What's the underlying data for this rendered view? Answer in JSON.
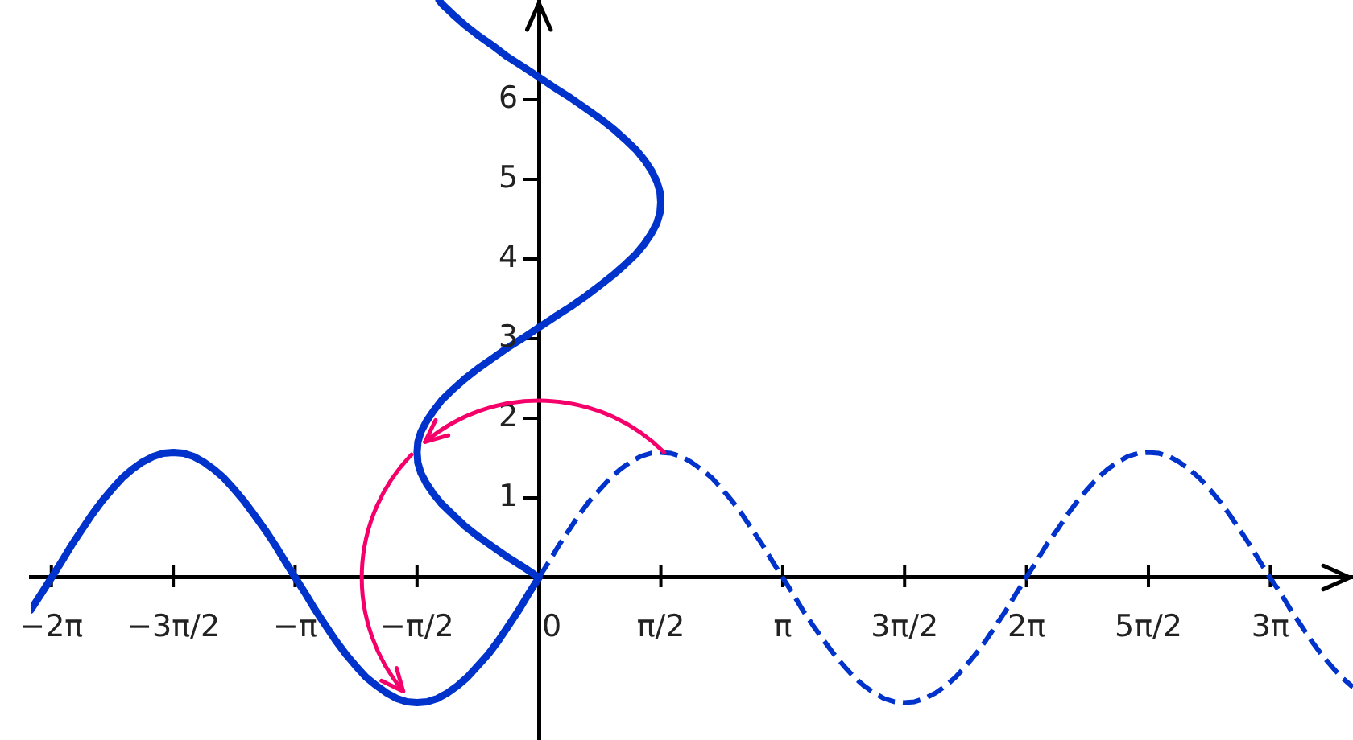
{
  "chart_data": {
    "type": "line",
    "xlim": [
      -6.55,
      10.49
    ],
    "ylim": [
      -2.04,
      7.25
    ],
    "xticks": [
      {
        "value": -6.283,
        "label": "−2π"
      },
      {
        "value": -4.712,
        "label": "−3π/2"
      },
      {
        "value": -3.142,
        "label": "−π"
      },
      {
        "value": -1.571,
        "label": "−π/2"
      },
      {
        "value": 0,
        "label": "0"
      },
      {
        "value": 1.571,
        "label": "π/2"
      },
      {
        "value": 3.142,
        "label": "π"
      },
      {
        "value": 4.712,
        "label": "3π/2"
      },
      {
        "value": 6.283,
        "label": "2π"
      },
      {
        "value": 7.854,
        "label": "5π/2"
      },
      {
        "value": 9.425,
        "label": "3π"
      }
    ],
    "yticks": [
      1,
      2,
      3,
      4,
      5,
      6
    ],
    "series": [
      {
        "color": "#0033cc",
        "line_style": "solid",
        "x": [
          -6.55,
          -6.41,
          -6.28,
          -6.15,
          -6.02,
          -5.89,
          -5.76,
          -5.63,
          -5.5,
          -5.37,
          -5.24,
          -5.11,
          -4.97,
          -4.84,
          -4.71,
          -4.58,
          -4.45,
          -4.32,
          -4.19,
          -4.06,
          -3.93,
          -3.8,
          -3.67,
          -3.53,
          -3.4,
          -3.27,
          -3.14,
          -3.01,
          -2.88,
          -2.75,
          -2.62,
          -2.49,
          -2.36,
          -2.23,
          -2.09,
          -1.96,
          -1.83,
          -1.7,
          -1.57,
          -1.44,
          -1.31,
          -1.18,
          -1.05,
          -0.92,
          -0.79,
          -0.65,
          -0.52,
          -0.39,
          -0.26,
          -0.13,
          0
        ],
        "values": [
          -0.41,
          -0.2,
          0,
          0.2,
          0.41,
          0.6,
          0.79,
          0.96,
          1.11,
          1.25,
          1.36,
          1.45,
          1.52,
          1.56,
          1.57,
          1.56,
          1.52,
          1.45,
          1.36,
          1.25,
          1.11,
          0.96,
          0.79,
          0.6,
          0.41,
          0.2,
          0,
          -0.2,
          -0.41,
          -0.6,
          -0.79,
          -0.96,
          -1.11,
          -1.25,
          -1.36,
          -1.45,
          -1.52,
          -1.56,
          -1.57,
          -1.56,
          -1.52,
          -1.45,
          -1.36,
          -1.25,
          -1.11,
          -0.96,
          -0.79,
          -0.6,
          -0.41,
          -0.2,
          0
        ]
      },
      {
        "color": "#0033cc",
        "line_style": "dashed",
        "x": [
          0,
          0.13,
          0.26,
          0.39,
          0.52,
          0.65,
          0.79,
          0.92,
          1.05,
          1.18,
          1.31,
          1.44,
          1.57,
          1.7,
          1.83,
          1.96,
          2.09,
          2.23,
          2.36,
          2.49,
          2.62,
          2.75,
          2.88,
          3.01,
          3.14,
          3.27,
          3.4,
          3.53,
          3.67,
          3.8,
          3.93,
          4.06,
          4.19,
          4.32,
          4.45,
          4.58,
          4.71,
          4.84,
          4.97,
          5.11,
          5.24,
          5.37,
          5.5,
          5.63,
          5.76,
          5.89,
          6.02,
          6.15,
          6.28,
          6.41,
          6.54,
          6.68,
          6.81,
          6.94,
          7.07,
          7.2,
          7.33,
          7.46,
          7.59,
          7.72,
          7.85,
          7.98,
          8.12,
          8.25,
          8.38,
          8.51,
          8.64,
          8.77,
          8.9,
          9.03,
          9.16,
          9.29,
          9.42,
          9.56,
          9.69,
          9.82,
          9.95,
          10.08,
          10.21,
          10.34,
          10.47,
          10.49
        ],
        "values": [
          0,
          0.2,
          0.41,
          0.6,
          0.79,
          0.96,
          1.11,
          1.25,
          1.36,
          1.45,
          1.52,
          1.56,
          1.57,
          1.56,
          1.52,
          1.45,
          1.36,
          1.25,
          1.11,
          0.96,
          0.79,
          0.6,
          0.41,
          0.2,
          0,
          -0.2,
          -0.41,
          -0.6,
          -0.79,
          -0.96,
          -1.11,
          -1.25,
          -1.36,
          -1.45,
          -1.52,
          -1.56,
          -1.57,
          -1.56,
          -1.52,
          -1.45,
          -1.36,
          -1.25,
          -1.11,
          -0.96,
          -0.79,
          -0.6,
          -0.41,
          -0.2,
          0,
          0.2,
          0.41,
          0.6,
          0.79,
          0.96,
          1.11,
          1.25,
          1.36,
          1.45,
          1.52,
          1.56,
          1.57,
          1.56,
          1.52,
          1.45,
          1.36,
          1.25,
          1.11,
          0.96,
          0.79,
          0.6,
          0.41,
          0.2,
          0,
          -0.2,
          -0.41,
          -0.6,
          -0.79,
          -0.96,
          -1.11,
          -1.25,
          -1.36,
          -1.37
        ]
      },
      {
        "color": "#0033cc",
        "line_style": "solid",
        "x": [
          0,
          -0.2,
          -0.41,
          -0.6,
          -0.79,
          -0.96,
          -1.11,
          -1.25,
          -1.36,
          -1.45,
          -1.52,
          -1.56,
          -1.57,
          -1.56,
          -1.52,
          -1.45,
          -1.36,
          -1.25,
          -1.11,
          -0.96,
          -0.79,
          -0.6,
          -0.41,
          -0.2,
          0,
          0.2,
          0.41,
          0.6,
          0.79,
          0.96,
          1.11,
          1.25,
          1.36,
          1.45,
          1.52,
          1.56,
          1.57,
          1.56,
          1.52,
          1.45,
          1.36,
          1.25,
          1.11,
          0.96,
          0.79,
          0.6,
          0.41,
          0.2,
          0,
          -0.2,
          -0.41,
          -0.6,
          -0.79,
          -0.96,
          -1.11,
          -1.25,
          -1.29
        ],
        "values": [
          0,
          0.13,
          0.26,
          0.39,
          0.52,
          0.65,
          0.79,
          0.92,
          1.05,
          1.18,
          1.31,
          1.44,
          1.57,
          1.7,
          1.83,
          1.96,
          2.09,
          2.23,
          2.36,
          2.49,
          2.62,
          2.75,
          2.88,
          3.01,
          3.14,
          3.27,
          3.4,
          3.53,
          3.67,
          3.8,
          3.93,
          4.06,
          4.19,
          4.32,
          4.45,
          4.58,
          4.71,
          4.84,
          4.97,
          5.11,
          5.24,
          5.37,
          5.5,
          5.63,
          5.76,
          5.89,
          6.02,
          6.15,
          6.28,
          6.41,
          6.54,
          6.68,
          6.81,
          6.94,
          7.07,
          7.2,
          7.25
        ]
      }
    ]
  }
}
